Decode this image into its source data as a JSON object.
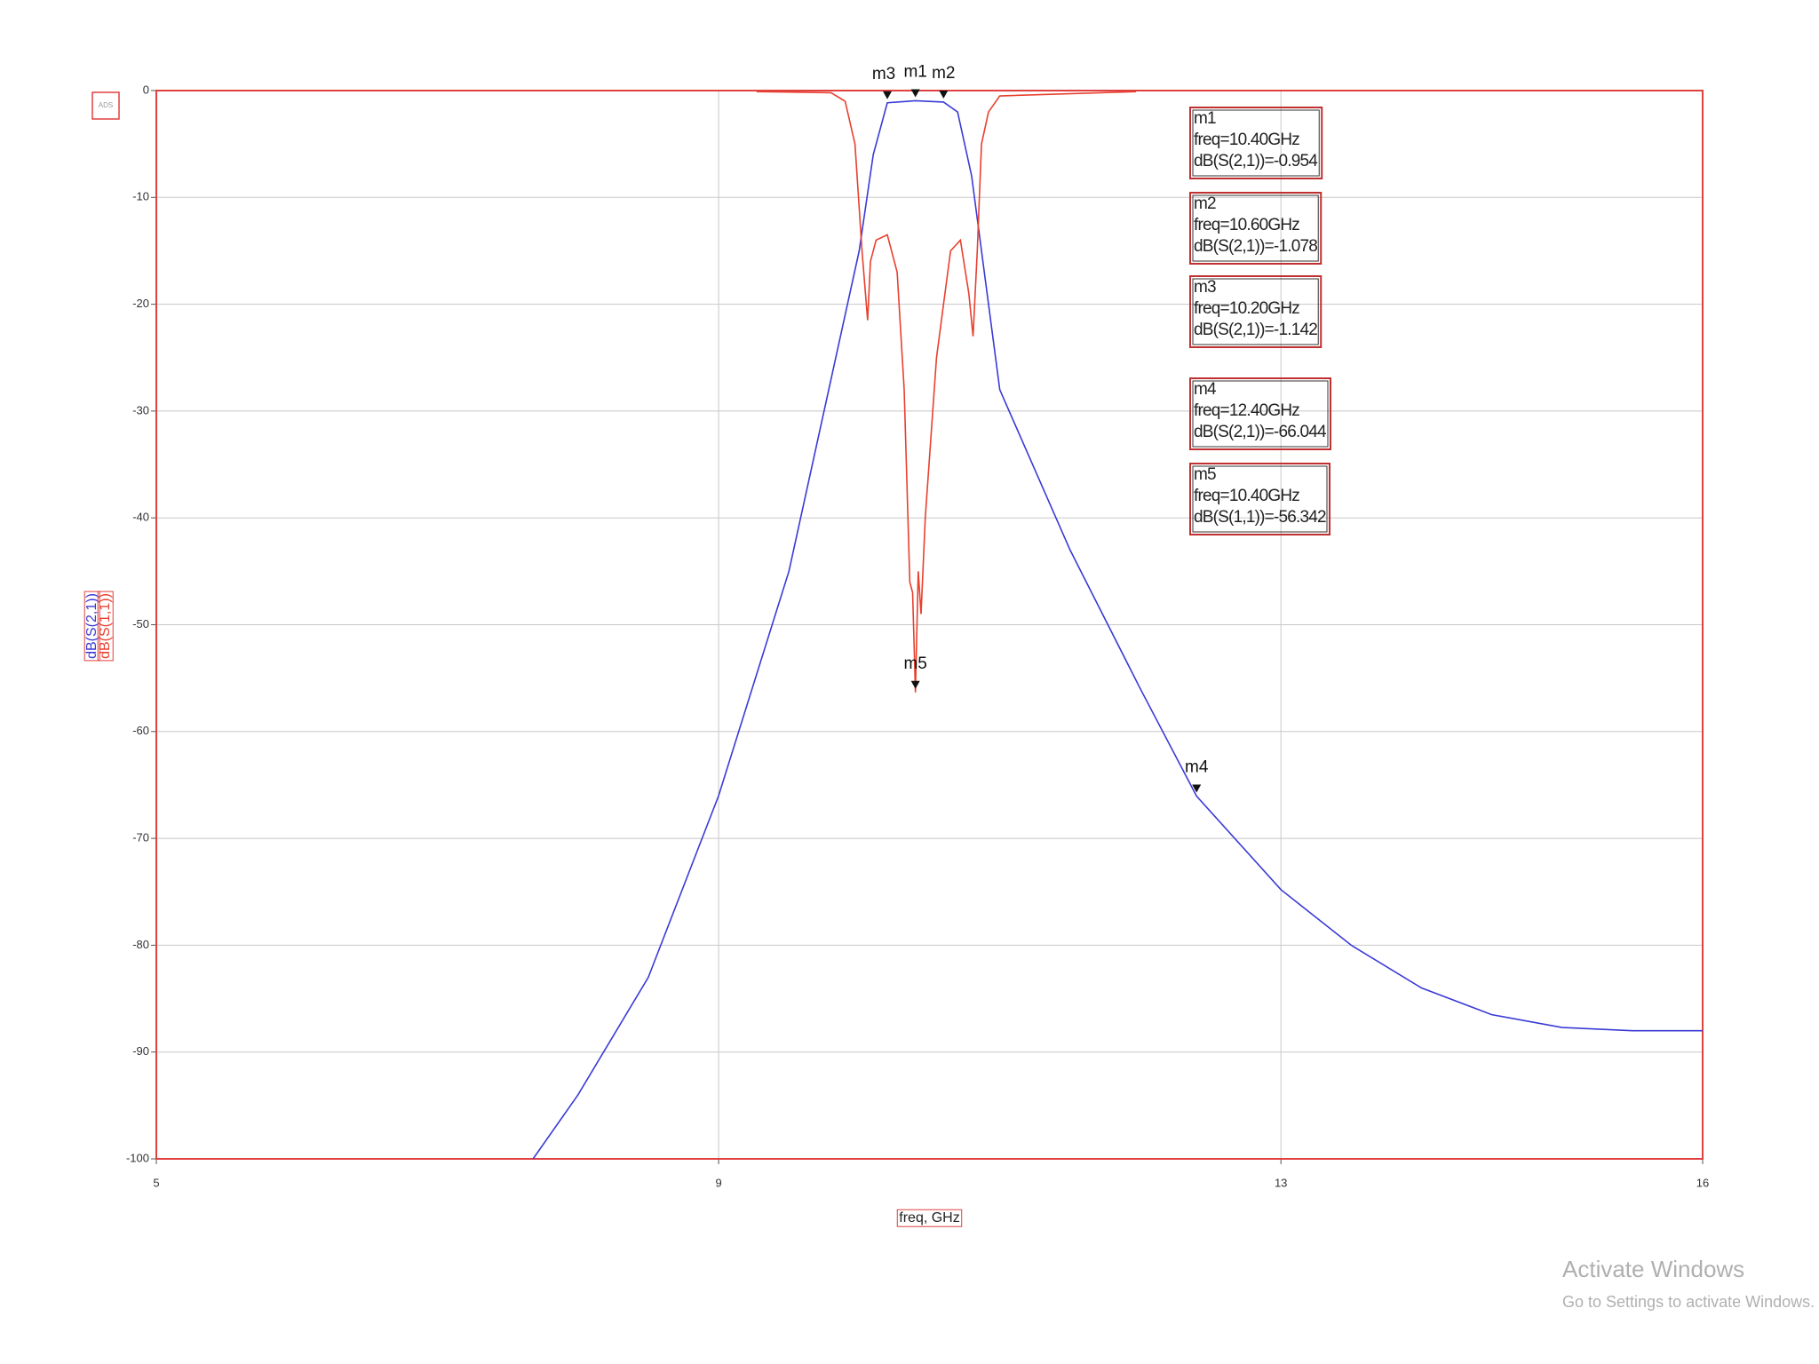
{
  "chart_data": {
    "type": "line",
    "logo": "ADS",
    "xlabel": "freq, GHz",
    "xlim": [
      5,
      16
    ],
    "xticks": [
      5,
      9,
      13,
      16
    ],
    "ylim": [
      -100,
      0
    ],
    "yticks": [
      0,
      -10,
      -20,
      -30,
      -40,
      -50,
      -60,
      -70,
      -80,
      -90,
      -100
    ],
    "grid": true,
    "series": [
      {
        "name": "dB(S(2,1))",
        "color": "#3a3ad6",
        "x": [
          7.68,
          8.0,
          8.5,
          9.0,
          9.5,
          9.8,
          10.0,
          10.1,
          10.2,
          10.4,
          10.6,
          10.7,
          10.8,
          10.9,
          11.0,
          11.5,
          12.0,
          12.4,
          13.0,
          13.5,
          14.0,
          14.5,
          15.0,
          15.5,
          16.0
        ],
        "values": [
          -100,
          -94,
          -83,
          -66,
          -45,
          -27,
          -15,
          -6,
          -1.142,
          -0.954,
          -1.078,
          -2,
          -8,
          -18,
          -28,
          -43,
          -56,
          -66.044,
          -74.8,
          -80,
          -84,
          -86.5,
          -87.7,
          -88,
          -88
        ]
      },
      {
        "name": "dB(S(1,1))",
        "color": "#e8402e",
        "x": [
          9.27,
          9.8,
          9.9,
          9.97,
          10.02,
          10.06,
          10.08,
          10.12,
          10.2,
          10.27,
          10.32,
          10.36,
          10.38,
          10.4,
          10.42,
          10.44,
          10.47,
          10.55,
          10.65,
          10.72,
          10.78,
          10.81,
          10.84,
          10.87,
          10.92,
          11.0,
          11.97
        ],
        "values": [
          -0.1,
          -0.2,
          -1,
          -5,
          -15,
          -21.5,
          -16,
          -14,
          -13.5,
          -17,
          -28,
          -46,
          -47,
          -56.342,
          -45,
          -49,
          -40,
          -25,
          -15,
          -14,
          -19,
          -23,
          -15,
          -5,
          -2,
          -0.5,
          -0.1
        ]
      }
    ],
    "markers": [
      {
        "name": "m1",
        "x": 10.4,
        "y": -0.954,
        "series": 0
      },
      {
        "name": "m2",
        "x": 10.6,
        "y": -1.078,
        "series": 0
      },
      {
        "name": "m3",
        "x": 10.2,
        "y": -1.142,
        "series": 0
      },
      {
        "name": "m4",
        "x": 12.4,
        "y": -66.044,
        "series": 0
      },
      {
        "name": "m5",
        "x": 10.4,
        "y": -56.342,
        "series": 1
      }
    ],
    "annotations": [
      [
        "m1",
        "freq=10.40GHz",
        "dB(S(2,1))=-0.954"
      ],
      [
        "m2",
        "freq=10.60GHz",
        "dB(S(2,1))=-1.078"
      ],
      [
        "m3",
        "freq=10.20GHz",
        "dB(S(2,1))=-1.142"
      ],
      [
        "m4",
        "freq=12.40GHz",
        "dB(S(2,1))=-66.044"
      ],
      [
        "m5",
        "freq=10.40GHz",
        "dB(S(1,1))=-56.342"
      ]
    ]
  },
  "watermark": {
    "title": "Activate Windows",
    "subtitle": "Go to Settings to activate Windows."
  }
}
